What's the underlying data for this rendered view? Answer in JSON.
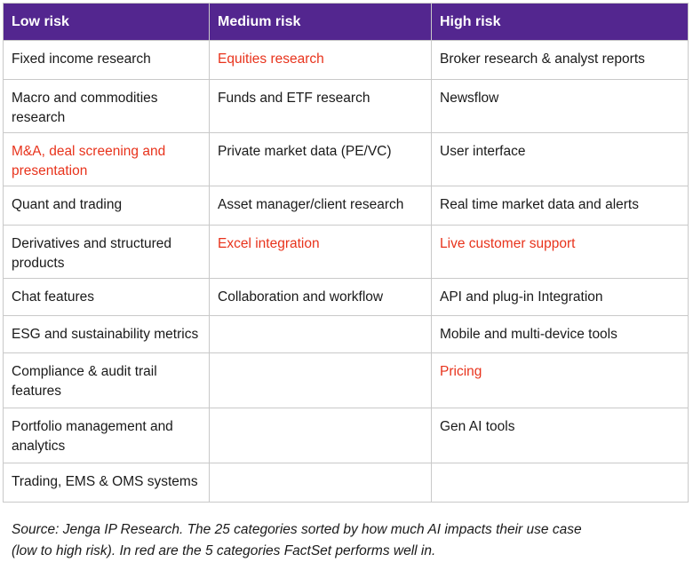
{
  "table": {
    "headers": [
      "Low risk",
      "Medium risk",
      "High risk"
    ],
    "rows": [
      [
        {
          "text": "Fixed income research",
          "highlight": false
        },
        {
          "text": "Equities research",
          "highlight": true
        },
        {
          "text": "Broker research & analyst reports",
          "highlight": false
        }
      ],
      [
        {
          "text": "Macro and commodities research",
          "highlight": false
        },
        {
          "text": "Funds and ETF research",
          "highlight": false
        },
        {
          "text": "Newsflow",
          "highlight": false
        }
      ],
      [
        {
          "text": "M&A, deal screening and presentation",
          "highlight": true
        },
        {
          "text": "Private market data (PE/VC)",
          "highlight": false
        },
        {
          "text": "User interface",
          "highlight": false
        }
      ],
      [
        {
          "text": "Quant and trading",
          "highlight": false
        },
        {
          "text": "Asset manager/client research",
          "highlight": false
        },
        {
          "text": "Real time market data and alerts",
          "highlight": false
        }
      ],
      [
        {
          "text": "Derivatives and structured products",
          "highlight": false
        },
        {
          "text": "Excel integration",
          "highlight": true
        },
        {
          "text": "Live customer support",
          "highlight": true
        }
      ],
      [
        {
          "text": "Chat features",
          "highlight": false
        },
        {
          "text": "Collaboration and workflow",
          "highlight": false
        },
        {
          "text": "API and plug-in Integration",
          "highlight": false
        }
      ],
      [
        {
          "text": "ESG and sustainability metrics",
          "highlight": false
        },
        {
          "text": "",
          "highlight": false
        },
        {
          "text": "Mobile and multi-device tools",
          "highlight": false
        }
      ],
      [
        {
          "text": "Compliance & audit trail features",
          "highlight": false
        },
        {
          "text": "",
          "highlight": false
        },
        {
          "text": "Pricing",
          "highlight": true
        }
      ],
      [
        {
          "text": "Portfolio management and analytics",
          "highlight": false
        },
        {
          "text": "",
          "highlight": false
        },
        {
          "text": "Gen AI tools",
          "highlight": false
        }
      ],
      [
        {
          "text": "Trading, EMS & OMS systems",
          "highlight": false
        },
        {
          "text": "",
          "highlight": false
        },
        {
          "text": "",
          "highlight": false
        }
      ]
    ]
  },
  "caption": {
    "line1": "Source: Jenga IP Research. The 25 categories sorted by how much AI impacts their use case",
    "line2": "(low to high risk). In red are the 5 categories FactSet performs well in."
  },
  "colors": {
    "header_bg": "#53268f",
    "header_text": "#ffffff",
    "highlight_text": "#e8331c",
    "body_text": "#1a1a1a",
    "border": "#c9c9c9"
  }
}
